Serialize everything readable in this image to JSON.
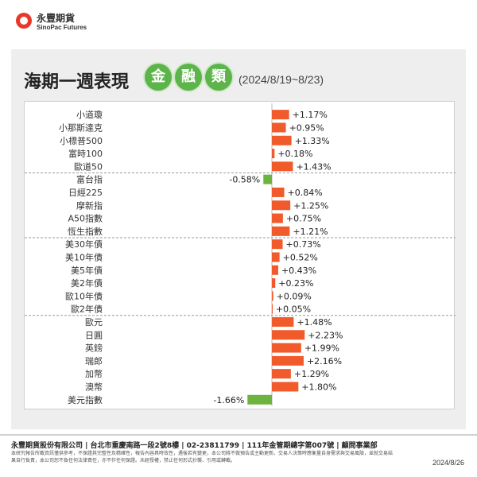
{
  "header": {
    "brand_cn": "永豐期貨",
    "brand_en": "SinoPac Futures"
  },
  "title": {
    "main": "海期一週表現",
    "badges": [
      "金",
      "融",
      "類"
    ],
    "period": "(2024/8/19~8/23)"
  },
  "colors": {
    "positive": "#f15a2b",
    "negative": "#6db33f",
    "badge": "#5cb44a"
  },
  "chart_data": {
    "type": "bar",
    "orientation": "horizontal",
    "unit": "%",
    "categories": [
      "小道瓊",
      "小那斯達克",
      "小標普500",
      "富時100",
      "歐道50",
      "富台指",
      "日經225",
      "摩新指",
      "A50指數",
      "恆生指數",
      "美30年債",
      "美10年債",
      "美5年債",
      "美2年債",
      "歐10年債",
      "歐2年債",
      "歐元",
      "日圓",
      "英鎊",
      "瑞郎",
      "加幣",
      "澳幣",
      "美元指數"
    ],
    "values": [
      1.17,
      0.95,
      1.33,
      0.18,
      1.43,
      -0.58,
      0.84,
      1.25,
      0.75,
      1.21,
      0.73,
      0.52,
      0.43,
      0.23,
      0.09,
      0.05,
      1.48,
      2.23,
      1.99,
      2.16,
      1.29,
      1.8,
      -1.66
    ],
    "labels": [
      "+1.17%",
      "+0.95%",
      "+1.33%",
      "+0.18%",
      "+1.43%",
      "-0.58%",
      "+0.84%",
      "+1.25%",
      "+0.75%",
      "+1.21%",
      "+0.73%",
      "+0.52%",
      "+0.43%",
      "+0.23%",
      "+0.09%",
      "+0.05%",
      "+1.48%",
      "+2.23%",
      "+1.99%",
      "+2.16%",
      "+1.29%",
      "+1.80%",
      "-1.66%"
    ],
    "groups": [
      5,
      10,
      16
    ],
    "xlim": [
      -2,
      2.5
    ]
  },
  "footer": {
    "company": "永豐期貨股份有限公司 | 台北市重慶南路一段2號8樓 | 02-23811799 | 111年金管期總字第007號 | 顧問事業部",
    "disclaimer": "本研究報告所載資訊僅供參考，不保證其完整性及精確性，報告內容具時效性，遇後若有變更，本公司將不做預告或主動更新。交易人決策時應衡量自身需求與交易風險，並就交易結果自行負責，本公司恕不負任何法律責任，亦不作任何保證。未經授權，禁止任何形式抄襲、引用或轉載。",
    "date": "2024/8/26"
  }
}
